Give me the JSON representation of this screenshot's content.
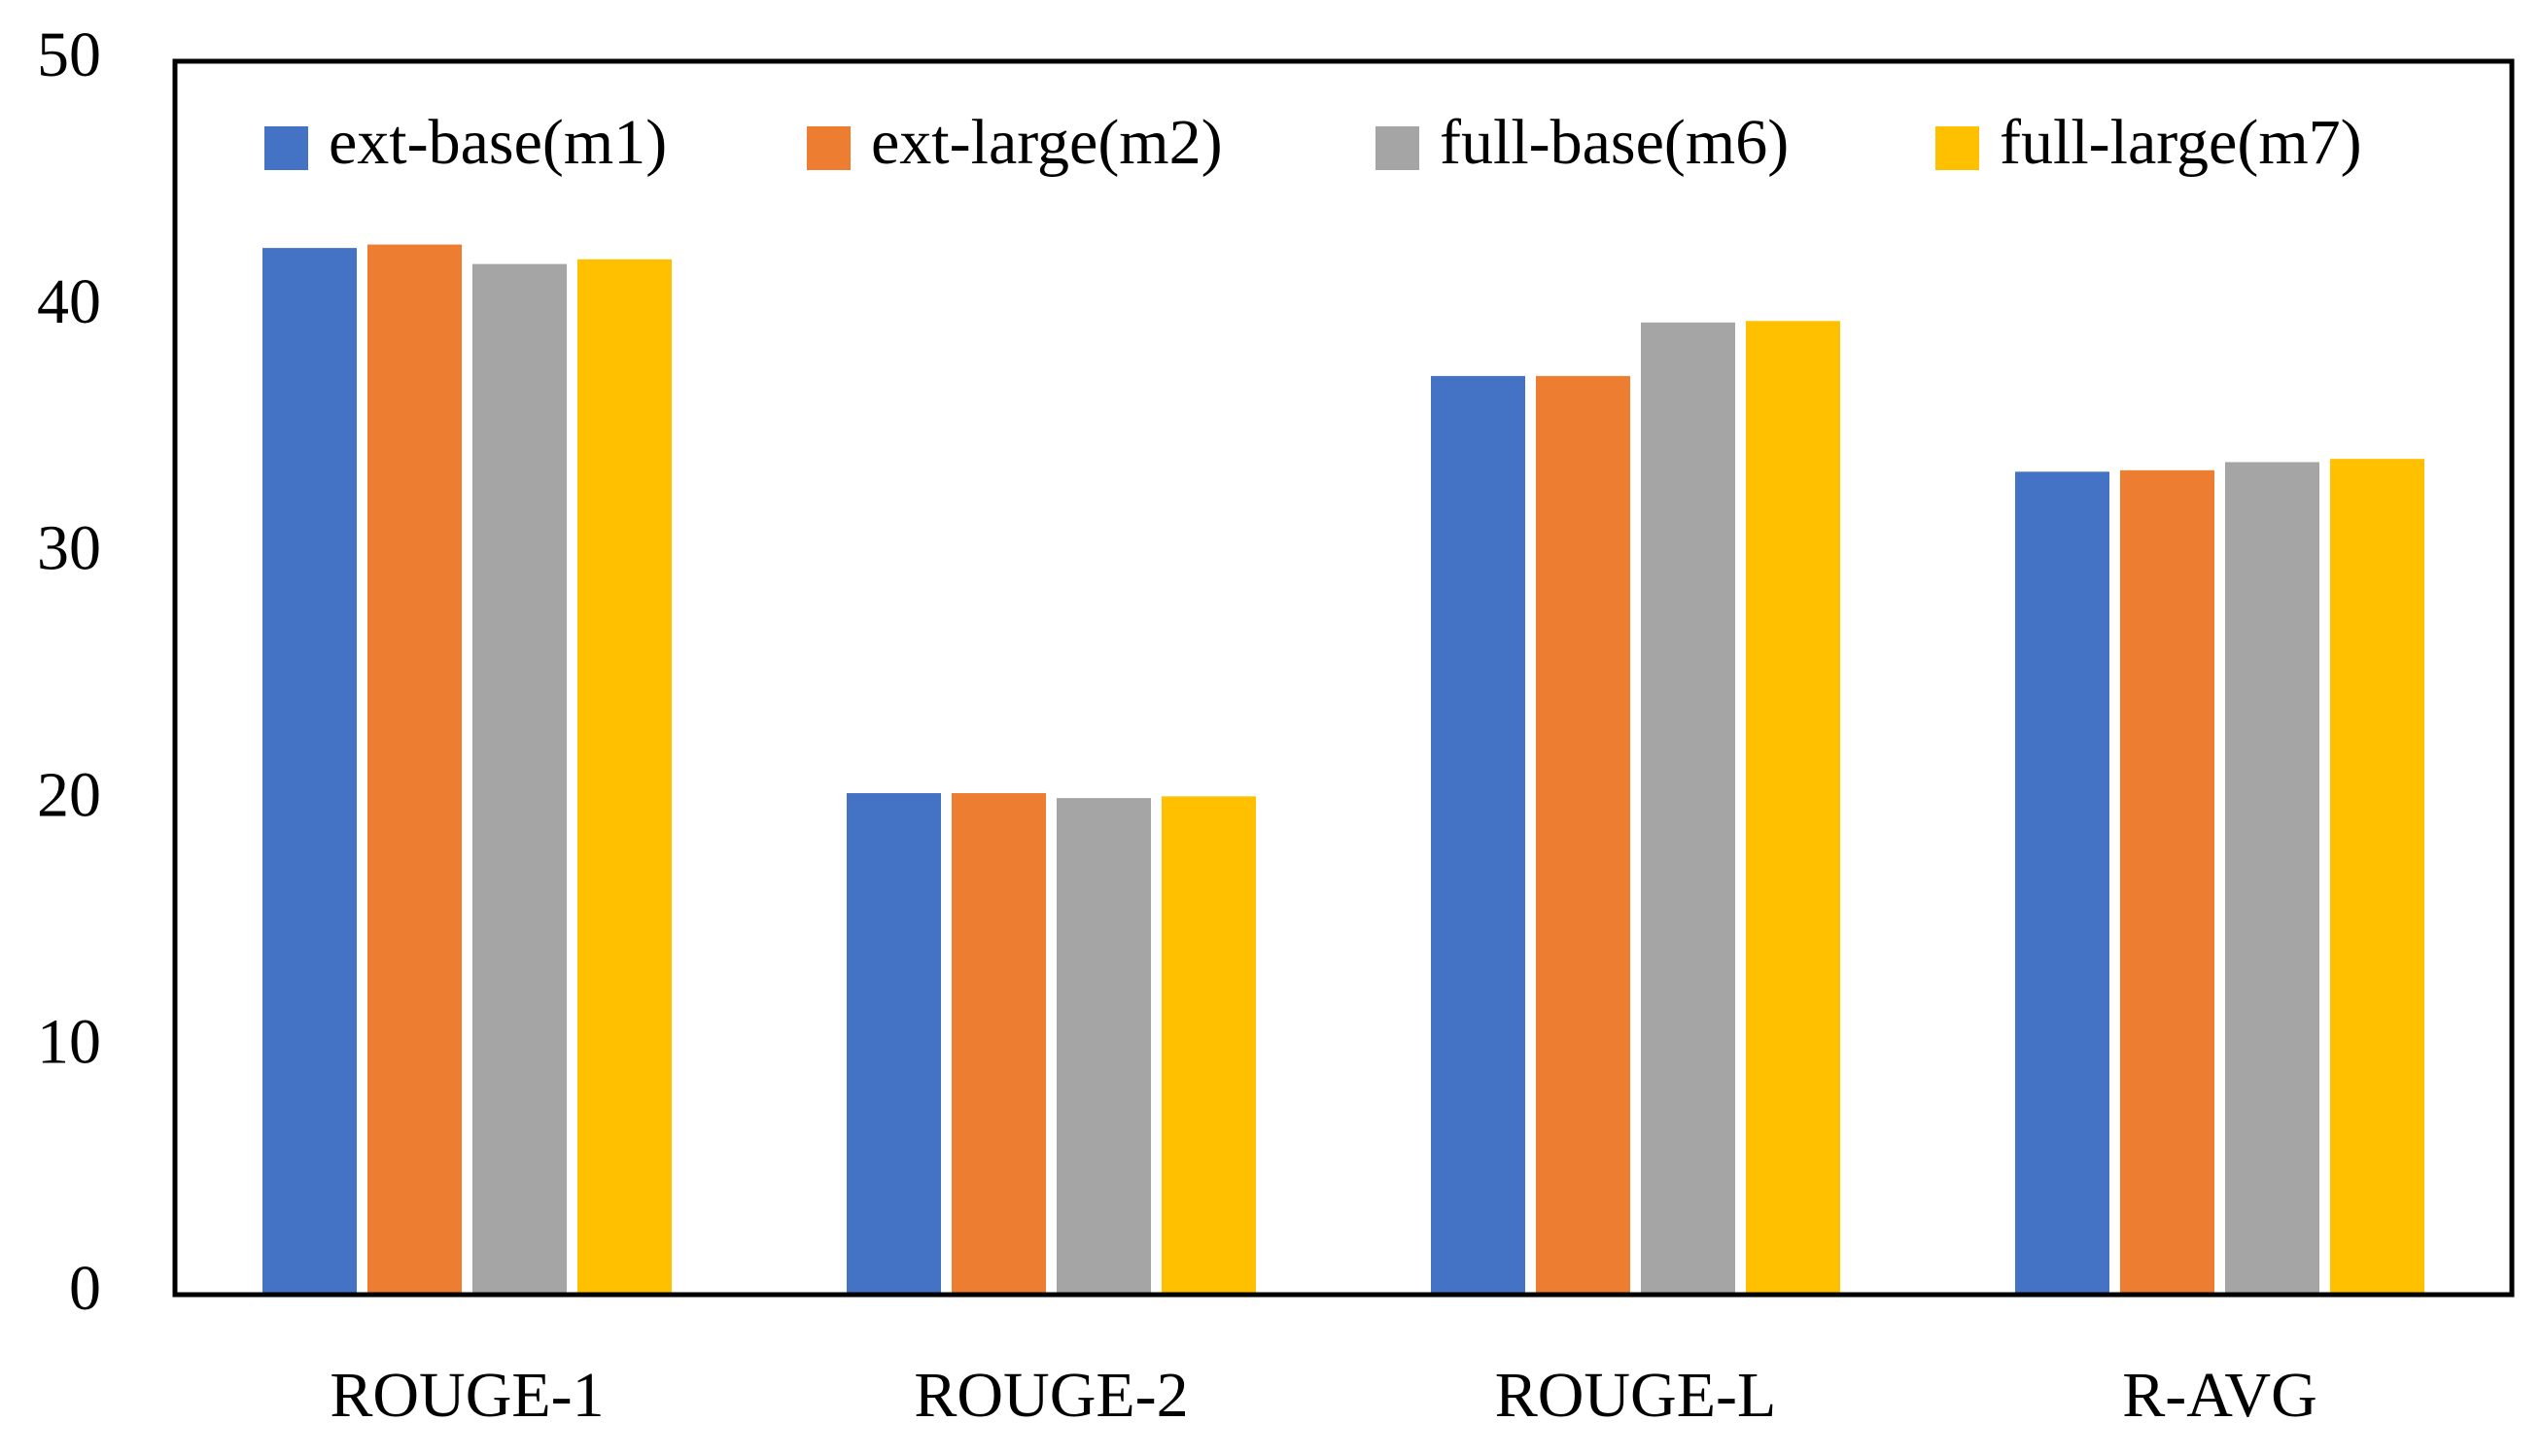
{
  "chart_data": {
    "type": "bar",
    "categories": [
      "ROUGE-1",
      "ROUGE-2",
      "ROUGE-L",
      "R-AVG"
    ],
    "series": [
      {
        "name": "ext-base(m1)",
        "color": "#4472c4",
        "values": [
          42.43,
          20.33,
          37.24,
          33.36
        ]
      },
      {
        "name": "ext-large(m2)",
        "color": "#ed7d31",
        "values": [
          42.57,
          20.33,
          37.24,
          33.42
        ]
      },
      {
        "name": "full-base(m6)",
        "color": "#a5a5a5",
        "values": [
          41.78,
          20.13,
          39.41,
          33.75
        ]
      },
      {
        "name": "full-large(m7)",
        "color": "#ffc000",
        "values": [
          41.97,
          20.2,
          39.47,
          33.88
        ]
      }
    ],
    "ylim": [
      0,
      50
    ],
    "yticks": [
      0,
      10,
      20,
      30,
      40,
      50
    ],
    "grid": false,
    "legend": "top"
  }
}
